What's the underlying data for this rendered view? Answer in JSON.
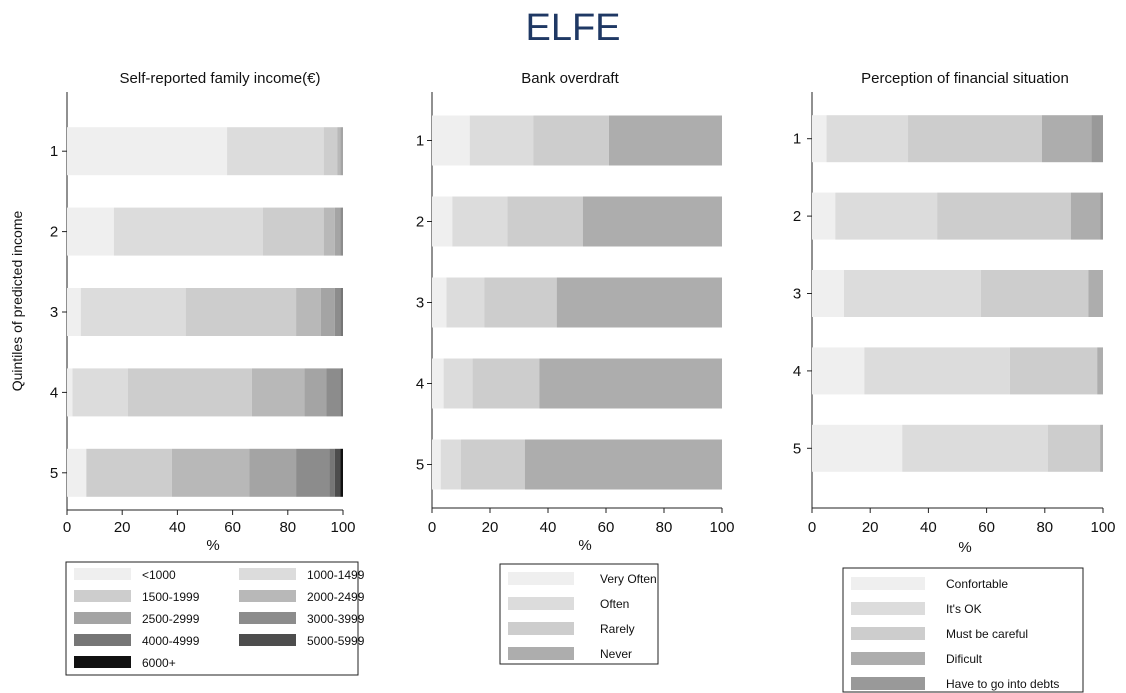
{
  "figure": {
    "title": "ELFE"
  },
  "chart_data": [
    {
      "type": "bar",
      "orientation": "horizontal",
      "stacked": true,
      "title": "Self-reported family income(€)",
      "xlabel": "%",
      "ylabel": "Quintiles of predicted income",
      "xlim": [
        0,
        100
      ],
      "xticks": [
        0,
        20,
        40,
        60,
        80,
        100
      ],
      "categories": [
        "1",
        "2",
        "3",
        "4",
        "5"
      ],
      "series": [
        {
          "name": "<1000",
          "color": "#efefef",
          "values": [
            58,
            17,
            5,
            2,
            7
          ]
        },
        {
          "name": "1000-1499",
          "color": "#dcdcdc",
          "values": [
            35,
            54,
            38,
            20,
            0
          ]
        },
        {
          "name": "1500-1999",
          "color": "#cdcdcd",
          "values": [
            5,
            22,
            40,
            45,
            31
          ]
        },
        {
          "name": "2000-2499",
          "color": "#b8b8b8",
          "values": [
            1,
            4,
            9,
            19,
            28
          ]
        },
        {
          "name": "2500-2999",
          "color": "#a4a4a4",
          "values": [
            1,
            2,
            5,
            8,
            17
          ]
        },
        {
          "name": "3000-3999",
          "color": "#8c8c8c",
          "values": [
            0,
            1,
            2,
            5,
            12
          ]
        },
        {
          "name": "4000-4999",
          "color": "#767676",
          "values": [
            0,
            0,
            1,
            1,
            2
          ]
        },
        {
          "name": "5000-5999",
          "color": "#4d4d4d",
          "values": [
            0,
            0,
            0,
            0,
            2
          ]
        },
        {
          "name": "6000+",
          "color": "#111111",
          "values": [
            0,
            0,
            0,
            0,
            1
          ]
        }
      ],
      "legend": {
        "position": "bottom",
        "columns": 2
      }
    },
    {
      "type": "bar",
      "orientation": "horizontal",
      "stacked": true,
      "title": "Bank overdraft",
      "xlabel": "%",
      "xlim": [
        0,
        100
      ],
      "xticks": [
        0,
        20,
        40,
        60,
        80,
        100
      ],
      "categories": [
        "1",
        "2",
        "3",
        "4",
        "5"
      ],
      "series": [
        {
          "name": "Very Often",
          "color": "#efefef",
          "values": [
            13,
            7,
            5,
            4,
            3
          ]
        },
        {
          "name": "Often",
          "color": "#dcdcdc",
          "values": [
            22,
            19,
            13,
            10,
            7
          ]
        },
        {
          "name": "Rarely",
          "color": "#cdcdcd",
          "values": [
            26,
            26,
            25,
            23,
            22
          ]
        },
        {
          "name": "Never",
          "color": "#adadad",
          "values": [
            39,
            48,
            57,
            63,
            68
          ]
        }
      ],
      "legend": {
        "position": "bottom",
        "columns": 1
      }
    },
    {
      "type": "bar",
      "orientation": "horizontal",
      "stacked": true,
      "title": "Perception of financial situation",
      "xlabel": "%",
      "xlim": [
        0,
        100
      ],
      "xticks": [
        0,
        20,
        40,
        60,
        80,
        100
      ],
      "categories": [
        "1",
        "2",
        "3",
        "4",
        "5"
      ],
      "series": [
        {
          "name": "Confortable",
          "color": "#efefef",
          "values": [
            5,
            8,
            11,
            18,
            31
          ]
        },
        {
          "name": "It's OK",
          "color": "#dcdcdc",
          "values": [
            28,
            35,
            47,
            50,
            50
          ]
        },
        {
          "name": "Must be careful",
          "color": "#cdcdcd",
          "values": [
            46,
            46,
            37,
            30,
            18
          ]
        },
        {
          "name": "Dificult",
          "color": "#adadad",
          "values": [
            17,
            10,
            5,
            2,
            1
          ]
        },
        {
          "name": "Have to go into debts",
          "color": "#999999",
          "values": [
            4,
            1,
            0,
            0,
            0
          ]
        }
      ],
      "legend": {
        "position": "bottom",
        "columns": 1
      }
    }
  ]
}
